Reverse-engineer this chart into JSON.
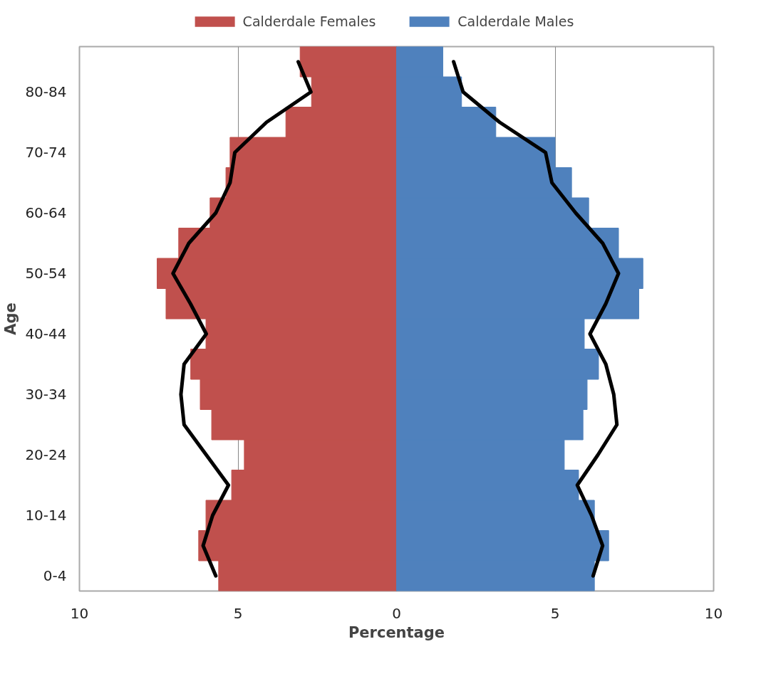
{
  "chart_data": {
    "type": "bar",
    "orientation": "horizontal",
    "xlabel": "Percentage",
    "ylabel": "Age",
    "categories": [
      null,
      "80-84",
      null,
      "70-74",
      null,
      "60-64",
      null,
      "50-54",
      null,
      "40-44",
      null,
      "30-34",
      null,
      "20-24",
      null,
      "10-14",
      null,
      "0-4"
    ],
    "series": [
      {
        "name": "Calderdale Females",
        "color": "#c0504d",
        "values": [
          -3.04,
          -2.68,
          -3.49,
          -5.25,
          -5.38,
          -5.88,
          -6.87,
          -7.55,
          -7.27,
          -6.01,
          -6.49,
          -6.19,
          -5.83,
          -4.8,
          -5.2,
          -6.01,
          -6.24,
          -5.61
        ]
      },
      {
        "name": "Calderdale Males",
        "color": "#4f81bd",
        "values": [
          1.46,
          2.05,
          3.13,
          5.0,
          5.52,
          6.06,
          7.0,
          7.77,
          7.64,
          5.92,
          6.37,
          6.01,
          5.88,
          5.29,
          5.74,
          6.24,
          6.69,
          6.24
        ]
      },
      {
        "type": "line",
        "color": "#000000",
        "values": [
          -3.1,
          -2.7,
          -4.1,
          -5.1,
          -5.25,
          -5.7,
          -6.55,
          -7.05,
          -6.5,
          -6.0,
          -6.7,
          -6.8,
          -6.7,
          -6.0,
          -5.3,
          -5.8,
          -6.1,
          -5.7
        ]
      },
      {
        "type": "line",
        "color": "#000000",
        "values": [
          1.8,
          2.1,
          3.25,
          4.7,
          4.9,
          5.65,
          6.5,
          7.0,
          6.6,
          6.1,
          6.6,
          6.85,
          6.95,
          6.35,
          5.7,
          6.15,
          6.5,
          6.2
        ]
      }
    ],
    "xlim": [
      -10,
      10
    ],
    "xticks": [
      {
        "value": -10,
        "label": "10"
      },
      {
        "value": -5,
        "label": "5"
      },
      0,
      5,
      10
    ],
    "grid": "x",
    "legend": "top",
    "stacked": true
  }
}
